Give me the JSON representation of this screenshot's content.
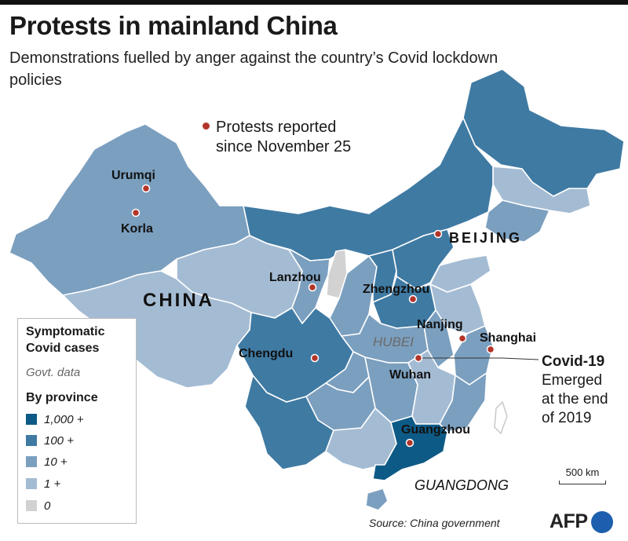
{
  "title": "Protests in mainland China",
  "subtitle": "Demonstrations fuelled by anger against the country’s Covid lockdown policies",
  "protest_key": {
    "line1": "Protests reported",
    "line2": "since November 25",
    "color": "#b33429"
  },
  "legend": {
    "title_line1": "Symptomatic",
    "title_line2": "Covid cases",
    "note": "Govt. data",
    "by": "By province",
    "items": [
      {
        "label": "1,000 +",
        "color": "#0e5a86"
      },
      {
        "label": "100 +",
        "color": "#3f7aa3"
      },
      {
        "label": "10 +",
        "color": "#7b9fbf"
      },
      {
        "label": "1 +",
        "color": "#a4bcd3"
      },
      {
        "label": "0",
        "color": "#d2d2d2"
      }
    ]
  },
  "country_label": "CHINA",
  "capital_label": "BEIJING",
  "region_labels": {
    "hubei": "HUBEI",
    "guangdong": "GUANGDONG"
  },
  "cities": [
    "Urumqi",
    "Korla",
    "Lanzhou",
    "Zhengzhou",
    "Nanjing",
    "Shanghai",
    "Chengdu",
    "Wuhan",
    "Guangzhou"
  ],
  "covid_note": {
    "title": "Covid-19",
    "line1": "Emerged",
    "line2": "at the end",
    "line3": "of 2019"
  },
  "scale": "500 km",
  "source": "Source: China government",
  "logo": "AFP"
}
